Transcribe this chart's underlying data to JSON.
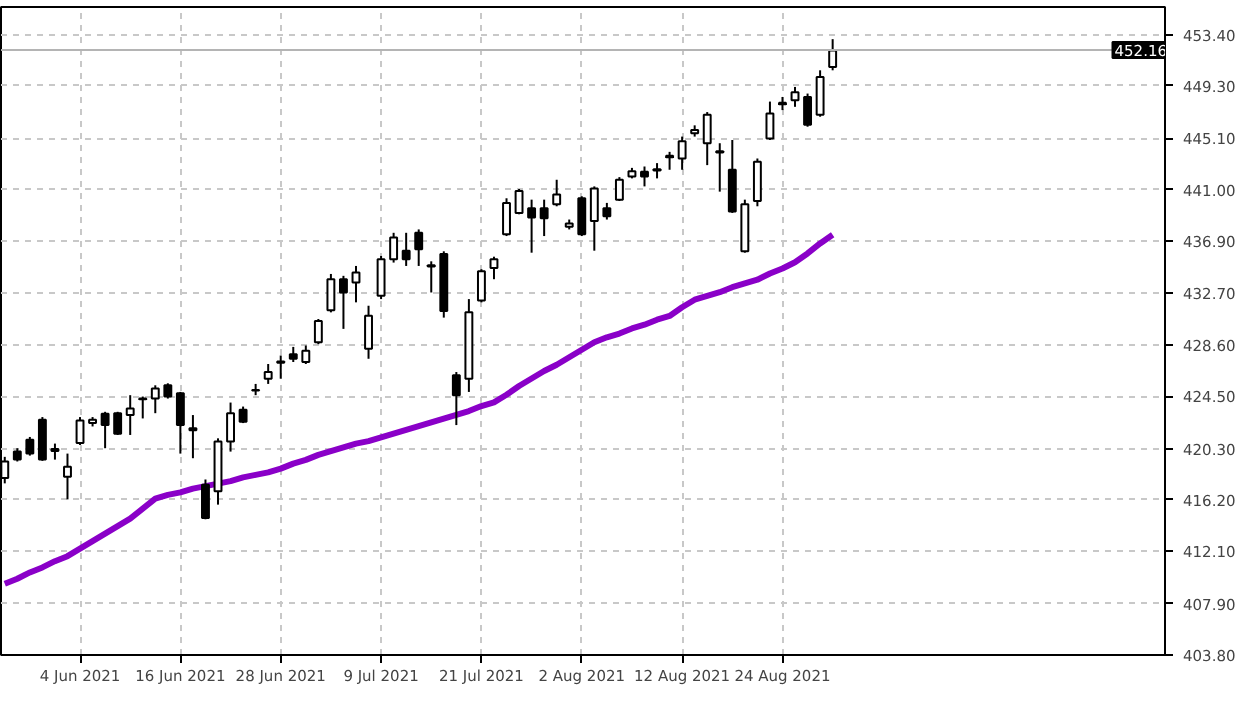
{
  "chart_data": {
    "type": "candlestick",
    "categories": [
      null,
      null,
      null,
      null,
      null,
      null,
      "4 Jun 2021",
      null,
      null,
      null,
      null,
      null,
      null,
      null,
      "16 Jun 2021",
      null,
      null,
      null,
      null,
      null,
      null,
      null,
      "28 Jun 2021",
      null,
      null,
      null,
      null,
      null,
      null,
      null,
      "9 Jul 2021",
      null,
      null,
      null,
      null,
      null,
      null,
      null,
      "21 Jul 2021",
      null,
      null,
      null,
      null,
      null,
      null,
      null,
      "2 Aug 2021",
      null,
      null,
      null,
      null,
      null,
      null,
      null,
      "12 Aug 2021",
      null,
      null,
      null,
      null,
      null,
      null,
      null,
      "24 Aug 2021",
      null,
      null,
      null,
      null
    ],
    "ohlc": [
      [
        417.94,
        419.64,
        417.52,
        419.27
      ],
      [
        420.06,
        420.33,
        419.27,
        419.42
      ],
      [
        421.01,
        421.23,
        419.74,
        419.9
      ],
      [
        422.6,
        422.82,
        419.32,
        419.42
      ],
      [
        420.27,
        420.7,
        419.42,
        420.11
      ],
      [
        418.05,
        419.9,
        416.24,
        418.84
      ],
      [
        420.75,
        422.82,
        420.59,
        422.55
      ],
      [
        422.34,
        422.82,
        422.07,
        422.6
      ],
      [
        423.08,
        423.24,
        420.33,
        422.18
      ],
      [
        423.13,
        423.24,
        421.39,
        421.49
      ],
      [
        422.98,
        424.57,
        421.39,
        423.5
      ],
      [
        424.3,
        424.46,
        422.71,
        424.25
      ],
      [
        424.3,
        425.36,
        423.13,
        425.1
      ],
      [
        425.36,
        425.52,
        424.3,
        424.46
      ],
      [
        424.72,
        424.83,
        419.9,
        422.18
      ],
      [
        421.92,
        422.98,
        419.53,
        421.76
      ],
      [
        417.41,
        417.83,
        414.65,
        414.76
      ],
      [
        416.88,
        421.12,
        415.82,
        420.86
      ],
      [
        420.86,
        423.98,
        420.06,
        423.13
      ],
      [
        423.4,
        423.66,
        422.34,
        422.45
      ],
      [
        424.99,
        425.47,
        424.57,
        424.94
      ],
      [
        425.89,
        427.06,
        425.47,
        426.42
      ],
      [
        427.16,
        427.74,
        425.89,
        427.27
      ],
      [
        427.85,
        428.43,
        427.22,
        427.48
      ],
      [
        427.22,
        428.54,
        427.06,
        428.12
      ],
      [
        428.81,
        430.66,
        428.65,
        430.5
      ],
      [
        431.35,
        434.26,
        431.19,
        433.84
      ],
      [
        433.84,
        434.11,
        429.87,
        432.78
      ],
      [
        433.58,
        434.9,
        431.99,
        434.37
      ],
      [
        428.28,
        431.72,
        427.48,
        430.92
      ],
      [
        432.52,
        435.7,
        432.25,
        435.43
      ],
      [
        435.43,
        437.55,
        435.17,
        437.18
      ],
      [
        436.12,
        437.55,
        434.9,
        435.43
      ],
      [
        437.55,
        437.82,
        434.9,
        436.23
      ],
      [
        434.95,
        435.27,
        432.78,
        434.85
      ],
      [
        435.85,
        436.07,
        430.77,
        431.3
      ],
      [
        426.16,
        426.42,
        422.18,
        424.57
      ],
      [
        425.89,
        432.25,
        424.83,
        431.19
      ],
      [
        432.14,
        434.64,
        431.99,
        434.48
      ],
      [
        434.74,
        435.64,
        433.84,
        435.43
      ],
      [
        437.44,
        440.31,
        437.29,
        439.94
      ],
      [
        439.14,
        441.05,
        439.03,
        440.89
      ],
      [
        439.51,
        440.2,
        435.96,
        438.77
      ],
      [
        439.51,
        440.2,
        437.29,
        438.72
      ],
      [
        439.83,
        441.79,
        439.67,
        440.62
      ],
      [
        438.03,
        438.61,
        437.82,
        438.29
      ],
      [
        440.31,
        440.47,
        437.29,
        437.44
      ],
      [
        438.5,
        441.26,
        436.12,
        441.1
      ],
      [
        439.51,
        439.94,
        438.61,
        438.88
      ],
      [
        440.2,
        442.0,
        440.09,
        441.79
      ],
      [
        442.06,
        442.74,
        441.9,
        442.48
      ],
      [
        442.43,
        442.85,
        441.26,
        442.06
      ],
      [
        442.53,
        443.12,
        441.9,
        442.64
      ],
      [
        443.59,
        444.02,
        442.59,
        443.7
      ],
      [
        443.49,
        445.24,
        442.59,
        444.86
      ],
      [
        445.5,
        446.14,
        445.24,
        445.77
      ],
      [
        444.71,
        447.2,
        442.96,
        446.98
      ],
      [
        444.07,
        444.71,
        440.84,
        443.96
      ],
      [
        442.59,
        444.97,
        439.14,
        439.25
      ],
      [
        436.07,
        440.2,
        435.96,
        439.83
      ],
      [
        440.09,
        443.49,
        439.67,
        443.22
      ],
      [
        445.08,
        448.04,
        444.97,
        447.09
      ],
      [
        447.83,
        448.41,
        447.36,
        447.94
      ],
      [
        448.15,
        449.21,
        447.62,
        448.79
      ],
      [
        448.41,
        448.68,
        446.03,
        446.19
      ],
      [
        446.98,
        450.54,
        446.83,
        450.01
      ],
      [
        450.8,
        453.03,
        450.54,
        452.13
      ]
    ],
    "series": [
      {
        "type": "line",
        "color": "#8a00c8",
        "values": [
          409.5,
          409.9,
          410.4,
          410.8,
          411.3,
          411.7,
          412.3,
          412.9,
          413.5,
          414.1,
          414.7,
          415.5,
          416.3,
          416.6,
          416.8,
          417.1,
          417.3,
          417.5,
          417.7,
          418.0,
          418.2,
          418.4,
          418.7,
          419.1,
          419.4,
          419.8,
          420.1,
          420.4,
          420.7,
          420.9,
          421.2,
          421.5,
          421.8,
          422.1,
          422.4,
          422.7,
          423.0,
          423.3,
          423.7,
          424.0,
          424.6,
          425.3,
          425.9,
          426.5,
          427.0,
          427.6,
          428.2,
          428.8,
          429.2,
          429.5,
          429.9,
          430.2,
          430.6,
          430.9,
          431.6,
          432.2,
          432.5,
          432.8,
          433.2,
          433.5,
          433.8,
          434.3,
          434.7,
          435.2,
          435.9,
          436.7,
          437.4
        ]
      }
    ],
    "ylim": [
      403.8,
      455.6
    ],
    "yticks": [
      {
        "value": 403.8,
        "label": "403.80"
      },
      {
        "value": 407.9,
        "label": "407.90"
      },
      {
        "value": 412.1,
        "label": "412.10"
      },
      {
        "value": 416.2,
        "label": "416.20"
      },
      {
        "value": 420.3,
        "label": "420.30"
      },
      {
        "value": 424.5,
        "label": "424.50"
      },
      {
        "value": 428.6,
        "label": "428.60"
      },
      {
        "value": 432.7,
        "label": "432.70"
      },
      {
        "value": 436.9,
        "label": "436.90"
      },
      {
        "value": 441.0,
        "label": "441.00"
      },
      {
        "value": 445.1,
        "label": "445.10"
      },
      {
        "value": 449.3,
        "label": "449.30"
      },
      {
        "value": 453.4,
        "label": "453.40"
      }
    ],
    "ref_lines": [
      {
        "axis": "y",
        "value": 452.16,
        "label": "452.16",
        "color": "#b4b4b4"
      }
    ],
    "grid": true,
    "line_style": "solid"
  }
}
